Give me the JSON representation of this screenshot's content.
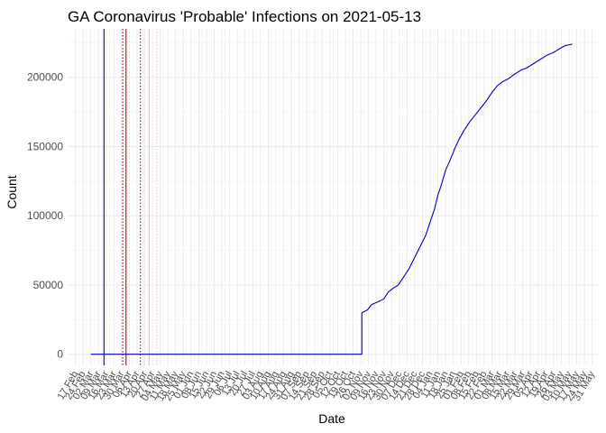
{
  "chart_data": {
    "type": "line",
    "title": "GA Coronavirus 'Probable' Infections on 2021-05-13",
    "xlabel": "Date",
    "ylabel": "Count",
    "xlim": [
      "2020-02-10",
      "2021-06-06"
    ],
    "ylim": [
      -8000,
      235000
    ],
    "y_ticks": [
      0,
      50000,
      100000,
      150000,
      200000
    ],
    "x_ticks": [
      {
        "date": "2020-02-17",
        "label": "17 Feb"
      },
      {
        "date": "2020-02-24",
        "label": "24 Feb"
      },
      {
        "date": "2020-03-02",
        "label": "02 Mar"
      },
      {
        "date": "2020-03-09",
        "label": "09 Mar"
      },
      {
        "date": "2020-03-16",
        "label": "16 Mar"
      },
      {
        "date": "2020-03-23",
        "label": "23 Mar"
      },
      {
        "date": "2020-03-30",
        "label": "30 Mar"
      },
      {
        "date": "2020-04-06",
        "label": "06 Apr"
      },
      {
        "date": "2020-04-13",
        "label": "13 Apr"
      },
      {
        "date": "2020-04-20",
        "label": "20 Apr"
      },
      {
        "date": "2020-04-27",
        "label": "27 Apr"
      },
      {
        "date": "2020-05-04",
        "label": "04 May"
      },
      {
        "date": "2020-05-11",
        "label": "11 May"
      },
      {
        "date": "2020-05-18",
        "label": "18 May"
      },
      {
        "date": "2020-05-25",
        "label": "25 May"
      },
      {
        "date": "2020-06-01",
        "label": "01 Jun"
      },
      {
        "date": "2020-06-08",
        "label": "08 Jun"
      },
      {
        "date": "2020-06-15",
        "label": "15 Jun"
      },
      {
        "date": "2020-06-22",
        "label": "22 Jun"
      },
      {
        "date": "2020-06-29",
        "label": "29 Jun"
      },
      {
        "date": "2020-07-06",
        "label": "06 Jul"
      },
      {
        "date": "2020-07-13",
        "label": "13 Jul"
      },
      {
        "date": "2020-07-20",
        "label": "20 Jul"
      },
      {
        "date": "2020-07-27",
        "label": "27 Jul"
      },
      {
        "date": "2020-08-03",
        "label": "03 Aug"
      },
      {
        "date": "2020-08-10",
        "label": "10 Aug"
      },
      {
        "date": "2020-08-17",
        "label": "17 Aug"
      },
      {
        "date": "2020-08-24",
        "label": "24 Aug"
      },
      {
        "date": "2020-08-31",
        "label": "31 Aug"
      },
      {
        "date": "2020-09-07",
        "label": "07 Sep"
      },
      {
        "date": "2020-09-14",
        "label": "14 Sep"
      },
      {
        "date": "2020-09-21",
        "label": "21 Sep"
      },
      {
        "date": "2020-09-28",
        "label": "28 Sep"
      },
      {
        "date": "2020-10-05",
        "label": "05 Oct"
      },
      {
        "date": "2020-10-12",
        "label": "12 Oct"
      },
      {
        "date": "2020-10-19",
        "label": "19 Oct"
      },
      {
        "date": "2020-10-26",
        "label": "26 Oct"
      },
      {
        "date": "2020-11-02",
        "label": "02 Nov"
      },
      {
        "date": "2020-11-09",
        "label": "09 Nov"
      },
      {
        "date": "2020-11-16",
        "label": "16 Nov"
      },
      {
        "date": "2020-11-23",
        "label": "23 Nov"
      },
      {
        "date": "2020-11-30",
        "label": "30 Nov"
      },
      {
        "date": "2020-12-07",
        "label": "07 Dec"
      },
      {
        "date": "2020-12-14",
        "label": "14 Dec"
      },
      {
        "date": "2020-12-21",
        "label": "21 Dec"
      },
      {
        "date": "2020-12-28",
        "label": "28 Dec"
      },
      {
        "date": "2021-01-04",
        "label": "04 Jan"
      },
      {
        "date": "2021-01-11",
        "label": "11 Jan"
      },
      {
        "date": "2021-01-18",
        "label": "18 Jan"
      },
      {
        "date": "2021-01-25",
        "label": "25 Jan"
      },
      {
        "date": "2021-02-01",
        "label": "01 Feb"
      },
      {
        "date": "2021-02-08",
        "label": "08 Feb"
      },
      {
        "date": "2021-02-15",
        "label": "15 Feb"
      },
      {
        "date": "2021-02-22",
        "label": "22 Feb"
      },
      {
        "date": "2021-03-01",
        "label": "01 Mar"
      },
      {
        "date": "2021-03-08",
        "label": "08 Mar"
      },
      {
        "date": "2021-03-15",
        "label": "15 Mar"
      },
      {
        "date": "2021-03-22",
        "label": "22 Mar"
      },
      {
        "date": "2021-03-29",
        "label": "29 Mar"
      },
      {
        "date": "2021-04-05",
        "label": "05 Apr"
      },
      {
        "date": "2021-04-12",
        "label": "12 Apr"
      },
      {
        "date": "2021-04-19",
        "label": "19 Apr"
      },
      {
        "date": "2021-04-26",
        "label": "26 Apr"
      },
      {
        "date": "2021-05-03",
        "label": "03 May"
      },
      {
        "date": "2021-05-10",
        "label": "10 May"
      },
      {
        "date": "2021-05-17",
        "label": "17 May"
      },
      {
        "date": "2021-05-24",
        "label": "24 May"
      },
      {
        "date": "2021-05-31",
        "label": "31 May"
      }
    ],
    "grid": true,
    "reference_lines": [
      {
        "date": "2020-03-14",
        "color": "#0000cc",
        "style": "solid"
      },
      {
        "date": "2020-03-31",
        "color": "#8b0000",
        "style": "dotted"
      },
      {
        "date": "2020-04-03",
        "color": "#cc0000",
        "style": "solid"
      },
      {
        "date": "2020-04-16",
        "color": "#cc0000",
        "style": "dotted"
      },
      {
        "date": "2020-04-24",
        "color": "#ffb6c1",
        "style": "solid"
      },
      {
        "date": "2020-05-01",
        "color": "#ffc0cb",
        "style": "dotted"
      }
    ],
    "series": [
      {
        "color": "#0000cc",
        "points": [
          [
            "2020-03-02",
            0
          ],
          [
            "2020-11-03",
            0
          ],
          [
            "2020-11-03",
            30000
          ],
          [
            "2020-11-08",
            32000
          ],
          [
            "2020-11-12",
            36000
          ],
          [
            "2020-11-18",
            38000
          ],
          [
            "2020-11-23",
            40000
          ],
          [
            "2020-11-27",
            45000
          ],
          [
            "2020-12-02",
            48000
          ],
          [
            "2020-12-06",
            50000
          ],
          [
            "2020-12-11",
            56000
          ],
          [
            "2020-12-16",
            62000
          ],
          [
            "2020-12-21",
            70000
          ],
          [
            "2020-12-26",
            78000
          ],
          [
            "2020-12-31",
            86000
          ],
          [
            "2021-01-05",
            98000
          ],
          [
            "2021-01-08",
            105000
          ],
          [
            "2021-01-11",
            115000
          ],
          [
            "2021-01-14",
            122000
          ],
          [
            "2021-01-18",
            133000
          ],
          [
            "2021-01-22",
            140000
          ],
          [
            "2021-01-26",
            148000
          ],
          [
            "2021-01-30",
            155000
          ],
          [
            "2021-02-04",
            162000
          ],
          [
            "2021-02-09",
            168000
          ],
          [
            "2021-02-14",
            173000
          ],
          [
            "2021-02-19",
            178000
          ],
          [
            "2021-02-24",
            183000
          ],
          [
            "2021-03-01",
            189000
          ],
          [
            "2021-03-06",
            194000
          ],
          [
            "2021-03-11",
            197000
          ],
          [
            "2021-03-16",
            199000
          ],
          [
            "2021-03-21",
            202000
          ],
          [
            "2021-03-27",
            205000
          ],
          [
            "2021-04-02",
            207000
          ],
          [
            "2021-04-08",
            210000
          ],
          [
            "2021-04-14",
            213000
          ],
          [
            "2021-04-20",
            216000
          ],
          [
            "2021-04-26",
            218000
          ],
          [
            "2021-05-02",
            221000
          ],
          [
            "2021-05-07",
            223000
          ],
          [
            "2021-05-13",
            224000
          ]
        ]
      }
    ]
  }
}
